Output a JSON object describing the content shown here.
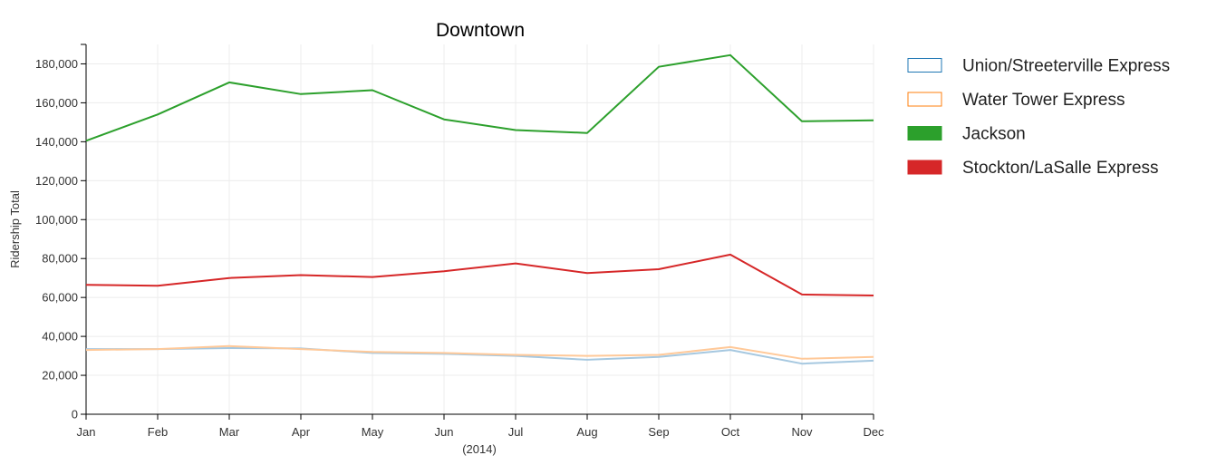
{
  "chart_data": {
    "type": "line",
    "title": "Downtown",
    "xlabel": "(2014)",
    "ylabel": "Ridership Total",
    "categories": [
      "Jan",
      "Feb",
      "Mar",
      "Apr",
      "May",
      "Jun",
      "Jul",
      "Aug",
      "Sep",
      "Oct",
      "Nov",
      "Dec"
    ],
    "ylim": [
      0,
      190000
    ],
    "yticks": [
      0,
      20000,
      40000,
      60000,
      80000,
      100000,
      120000,
      140000,
      160000,
      180000
    ],
    "ytick_labels": [
      "0",
      "20,000",
      "40,000",
      "60,000",
      "80,000",
      "100,000",
      "120,000",
      "140,000",
      "160,000",
      "180,000"
    ],
    "grid": true,
    "legend_position": "right",
    "series": [
      {
        "name": "Union/Streeterville Express",
        "color": "#1f77b4",
        "line_color": "#a6c8e0",
        "legend_filled": false,
        "values": [
          33500,
          33500,
          34000,
          33800,
          31500,
          31000,
          30000,
          28000,
          29500,
          33000,
          26000,
          27500
        ]
      },
      {
        "name": "Water Tower Express",
        "color": "#ff7f0e",
        "line_color": "#ffc999",
        "legend_filled": false,
        "values": [
          33000,
          33500,
          35000,
          33500,
          32000,
          31500,
          30500,
          30000,
          30500,
          34500,
          28500,
          29500
        ]
      },
      {
        "name": "Jackson",
        "color": "#2ca02c",
        "line_color": "#2ca02c",
        "legend_filled": true,
        "values": [
          140500,
          154000,
          170500,
          164500,
          166500,
          151500,
          146000,
          144500,
          178500,
          184500,
          150500,
          151000
        ]
      },
      {
        "name": "Stockton/LaSalle Express",
        "color": "#d62728",
        "line_color": "#d62728",
        "legend_filled": true,
        "values": [
          66500,
          66000,
          70000,
          71500,
          70500,
          73500,
          77500,
          72500,
          74500,
          82000,
          61500,
          61000
        ]
      }
    ]
  }
}
